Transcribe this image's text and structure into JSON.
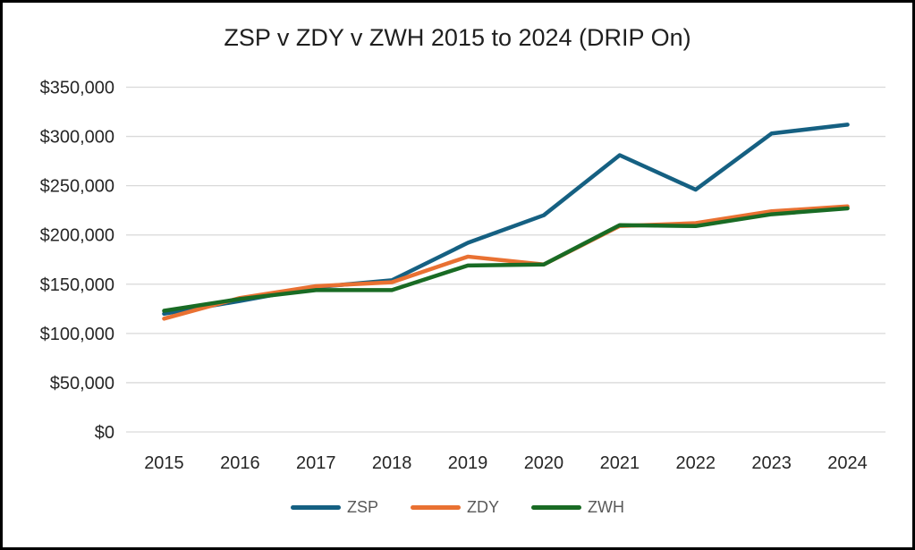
{
  "chart": {
    "title": "ZSP v ZDY v ZWH 2015 to 2024 (DRIP On)"
  },
  "chart_data": {
    "type": "line",
    "title": "ZSP v ZDY v ZWH 2015 to 2024 (DRIP On)",
    "categories": [
      "2015",
      "2016",
      "2017",
      "2018",
      "2019",
      "2020",
      "2021",
      "2022",
      "2023",
      "2024"
    ],
    "series": [
      {
        "name": "ZSP",
        "color": "#156082",
        "values": [
          120000,
          133000,
          147000,
          154000,
          192000,
          220000,
          281000,
          246000,
          303000,
          312000
        ]
      },
      {
        "name": "ZDY",
        "color": "#E97132",
        "values": [
          115000,
          136000,
          148000,
          152000,
          178000,
          170000,
          209000,
          212000,
          224000,
          229000
        ]
      },
      {
        "name": "ZWH",
        "color": "#196B24",
        "values": [
          123000,
          135000,
          144000,
          144000,
          169000,
          170000,
          210000,
          209000,
          221000,
          227000
        ]
      }
    ],
    "xlabel": "",
    "ylabel": "",
    "ylim": [
      0,
      350000
    ],
    "ytick_step": 50000,
    "y_tick_labels": [
      "$0",
      "$50,000",
      "$100,000",
      "$150,000",
      "$200,000",
      "$250,000",
      "$300,000",
      "$350,000"
    ],
    "grid": true,
    "legend_position": "bottom",
    "legend_entries": [
      "ZSP",
      "ZDY",
      "ZWH"
    ]
  },
  "colors": {
    "background": "#FFFFFF",
    "frame_border": "#000000",
    "gridline": "#D9D9D9",
    "axis_text": "#262626",
    "legend_text": "#595959"
  }
}
